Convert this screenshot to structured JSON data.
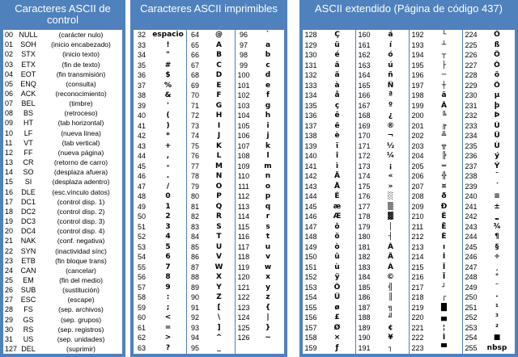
{
  "control": {
    "title": "Caracteres ASCII de control",
    "rows": [
      {
        "code": "00",
        "name": "NULL",
        "desc": "(carácter nulo)"
      },
      {
        "code": "01",
        "name": "SOH",
        "desc": "(inicio encabezado)"
      },
      {
        "code": "02",
        "name": "STX",
        "desc": "(inicio texto)"
      },
      {
        "code": "03",
        "name": "ETX",
        "desc": "(fin de texto)"
      },
      {
        "code": "04",
        "name": "EOT",
        "desc": "(fin transmisión)"
      },
      {
        "code": "05",
        "name": "ENQ",
        "desc": "(consulta)"
      },
      {
        "code": "06",
        "name": "ACK",
        "desc": "(reconocimiento)"
      },
      {
        "code": "07",
        "name": "BEL",
        "desc": "(timbre)"
      },
      {
        "code": "08",
        "name": "BS",
        "desc": "(retroceso)"
      },
      {
        "code": "09",
        "name": "HT",
        "desc": "(tab horizontal)"
      },
      {
        "code": "10",
        "name": "LF",
        "desc": "(nueva línea)"
      },
      {
        "code": "11",
        "name": "VT",
        "desc": "(tab vertical)"
      },
      {
        "code": "12",
        "name": "FF",
        "desc": "(nueva página)"
      },
      {
        "code": "13",
        "name": "CR",
        "desc": "(retorno de carro)"
      },
      {
        "code": "14",
        "name": "SO",
        "desc": "(desplaza afuera)"
      },
      {
        "code": "15",
        "name": "SI",
        "desc": "(desplaza adentro)"
      },
      {
        "code": "16",
        "name": "DLE",
        "desc": "(esc.vínculo datos)"
      },
      {
        "code": "17",
        "name": "DC1",
        "desc": "(control disp. 1)"
      },
      {
        "code": "18",
        "name": "DC2",
        "desc": "(control disp. 2)"
      },
      {
        "code": "19",
        "name": "DC3",
        "desc": "(control disp. 3)"
      },
      {
        "code": "20",
        "name": "DC4",
        "desc": "(control disp. 4)"
      },
      {
        "code": "21",
        "name": "NAK",
        "desc": "(conf. negativa)"
      },
      {
        "code": "22",
        "name": "SYN",
        "desc": "(inactividad sínc)"
      },
      {
        "code": "23",
        "name": "ETB",
        "desc": "(fin bloque trans)"
      },
      {
        "code": "24",
        "name": "CAN",
        "desc": "(cancelar)"
      },
      {
        "code": "25",
        "name": "EM",
        "desc": "(fin del medio)"
      },
      {
        "code": "26",
        "name": "SUB",
        "desc": "(sustitución)"
      },
      {
        "code": "27",
        "name": "ESC",
        "desc": "(escape)"
      },
      {
        "code": "28",
        "name": "FS",
        "desc": "(sep. archivos)"
      },
      {
        "code": "29",
        "name": "GS",
        "desc": "(sep. grupos)"
      },
      {
        "code": "30",
        "name": "RS",
        "desc": "(sep. registros)"
      },
      {
        "code": "31",
        "name": "US",
        "desc": "(sep. unidades)"
      },
      {
        "code": "127",
        "name": "DEL",
        "desc": "(suprimir)"
      }
    ]
  },
  "printable": {
    "title": "Caracteres ASCII imprimibles",
    "columns": [
      [
        [
          "32",
          "espacio"
        ],
        [
          "33",
          "!"
        ],
        [
          "34",
          "\""
        ],
        [
          "35",
          "#"
        ],
        [
          "36",
          "$"
        ],
        [
          "37",
          "%"
        ],
        [
          "38",
          "&"
        ],
        [
          "39",
          "'"
        ],
        [
          "40",
          "("
        ],
        [
          "41",
          ")"
        ],
        [
          "42",
          "*"
        ],
        [
          "43",
          "+"
        ],
        [
          "44",
          ","
        ],
        [
          "45",
          "-"
        ],
        [
          "46",
          "."
        ],
        [
          "47",
          "/"
        ],
        [
          "48",
          "0"
        ],
        [
          "49",
          "1"
        ],
        [
          "50",
          "2"
        ],
        [
          "51",
          "3"
        ],
        [
          "52",
          "4"
        ],
        [
          "53",
          "5"
        ],
        [
          "54",
          "6"
        ],
        [
          "55",
          "7"
        ],
        [
          "56",
          "8"
        ],
        [
          "57",
          "9"
        ],
        [
          "58",
          ":"
        ],
        [
          "59",
          ";"
        ],
        [
          "60",
          "<"
        ],
        [
          "61",
          "="
        ],
        [
          "62",
          ">"
        ],
        [
          "63",
          "?"
        ]
      ],
      [
        [
          "64",
          "@"
        ],
        [
          "65",
          "A"
        ],
        [
          "66",
          "B"
        ],
        [
          "67",
          "C"
        ],
        [
          "68",
          "D"
        ],
        [
          "69",
          "E"
        ],
        [
          "70",
          "F"
        ],
        [
          "71",
          "G"
        ],
        [
          "72",
          "H"
        ],
        [
          "73",
          "I"
        ],
        [
          "74",
          "J"
        ],
        [
          "75",
          "K"
        ],
        [
          "76",
          "L"
        ],
        [
          "77",
          "M"
        ],
        [
          "78",
          "N"
        ],
        [
          "79",
          "O"
        ],
        [
          "80",
          "P"
        ],
        [
          "81",
          "Q"
        ],
        [
          "82",
          "R"
        ],
        [
          "83",
          "S"
        ],
        [
          "84",
          "T"
        ],
        [
          "85",
          "U"
        ],
        [
          "86",
          "V"
        ],
        [
          "87",
          "W"
        ],
        [
          "88",
          "X"
        ],
        [
          "89",
          "Y"
        ],
        [
          "90",
          "Z"
        ],
        [
          "91",
          "["
        ],
        [
          "92",
          "\\"
        ],
        [
          "93",
          "]"
        ],
        [
          "94",
          "^"
        ],
        [
          "95",
          "_"
        ]
      ],
      [
        [
          "96",
          "`"
        ],
        [
          "97",
          "a"
        ],
        [
          "98",
          "b"
        ],
        [
          "99",
          "c"
        ],
        [
          "100",
          "d"
        ],
        [
          "101",
          "e"
        ],
        [
          "102",
          "f"
        ],
        [
          "103",
          "g"
        ],
        [
          "104",
          "h"
        ],
        [
          "105",
          "i"
        ],
        [
          "106",
          "j"
        ],
        [
          "107",
          "k"
        ],
        [
          "108",
          "l"
        ],
        [
          "109",
          "m"
        ],
        [
          "110",
          "n"
        ],
        [
          "111",
          "o"
        ],
        [
          "112",
          "p"
        ],
        [
          "113",
          "q"
        ],
        [
          "114",
          "r"
        ],
        [
          "115",
          "s"
        ],
        [
          "116",
          "t"
        ],
        [
          "117",
          "u"
        ],
        [
          "118",
          "v"
        ],
        [
          "119",
          "w"
        ],
        [
          "120",
          "x"
        ],
        [
          "121",
          "y"
        ],
        [
          "122",
          "z"
        ],
        [
          "123",
          "{"
        ],
        [
          "124",
          "|"
        ],
        [
          "125",
          "}"
        ],
        [
          "126",
          "~"
        ]
      ]
    ]
  },
  "extended": {
    "title": "ASCII extendido (Página de código 437)",
    "columns": [
      [
        [
          "128",
          "Ç"
        ],
        [
          "129",
          "ü"
        ],
        [
          "130",
          "é"
        ],
        [
          "131",
          "â"
        ],
        [
          "132",
          "ä"
        ],
        [
          "133",
          "à"
        ],
        [
          "134",
          "å"
        ],
        [
          "135",
          "ç"
        ],
        [
          "136",
          "ê"
        ],
        [
          "137",
          "ë"
        ],
        [
          "138",
          "è"
        ],
        [
          "139",
          "ï"
        ],
        [
          "140",
          "î"
        ],
        [
          "141",
          "ì"
        ],
        [
          "142",
          "Ä"
        ],
        [
          "143",
          "Å"
        ],
        [
          "144",
          "É"
        ],
        [
          "145",
          "æ"
        ],
        [
          "146",
          "Æ"
        ],
        [
          "147",
          "ô"
        ],
        [
          "148",
          "ö"
        ],
        [
          "149",
          "ò"
        ],
        [
          "150",
          "û"
        ],
        [
          "151",
          "ù"
        ],
        [
          "152",
          "ÿ"
        ],
        [
          "153",
          "Ö"
        ],
        [
          "154",
          "Ü"
        ],
        [
          "155",
          "ø"
        ],
        [
          "156",
          "£"
        ],
        [
          "157",
          "Ø"
        ],
        [
          "158",
          "×"
        ],
        [
          "159",
          "ƒ"
        ]
      ],
      [
        [
          "160",
          "á"
        ],
        [
          "161",
          "í"
        ],
        [
          "162",
          "ó"
        ],
        [
          "163",
          "ú"
        ],
        [
          "164",
          "ñ"
        ],
        [
          "165",
          "Ñ"
        ],
        [
          "166",
          "ª"
        ],
        [
          "167",
          "º"
        ],
        [
          "168",
          "¿"
        ],
        [
          "169",
          "®"
        ],
        [
          "170",
          "¬"
        ],
        [
          "171",
          "½"
        ],
        [
          "172",
          "¼"
        ],
        [
          "173",
          "¡"
        ],
        [
          "174",
          "«"
        ],
        [
          "175",
          "»"
        ],
        [
          "176",
          "░"
        ],
        [
          "177",
          "▒"
        ],
        [
          "178",
          "▓"
        ],
        [
          "179",
          "│"
        ],
        [
          "180",
          "┤"
        ],
        [
          "181",
          "Á"
        ],
        [
          "182",
          "Â"
        ],
        [
          "183",
          "À"
        ],
        [
          "184",
          "©"
        ],
        [
          "185",
          "╣"
        ],
        [
          "186",
          "║"
        ],
        [
          "187",
          "╗"
        ],
        [
          "188",
          "╝"
        ],
        [
          "189",
          "¢"
        ],
        [
          "190",
          "¥"
        ],
        [
          "191",
          "┐"
        ]
      ],
      [
        [
          "192",
          "└"
        ],
        [
          "193",
          "┴"
        ],
        [
          "194",
          "┬"
        ],
        [
          "195",
          "├"
        ],
        [
          "196",
          "─"
        ],
        [
          "197",
          "┼"
        ],
        [
          "198",
          "ã"
        ],
        [
          "199",
          "Ã"
        ],
        [
          "200",
          "╚"
        ],
        [
          "201",
          "╔"
        ],
        [
          "202",
          "╩"
        ],
        [
          "203",
          "╦"
        ],
        [
          "204",
          "╠"
        ],
        [
          "205",
          "═"
        ],
        [
          "206",
          "╬"
        ],
        [
          "207",
          "¤"
        ],
        [
          "208",
          "ð"
        ],
        [
          "209",
          "Ð"
        ],
        [
          "210",
          "Ê"
        ],
        [
          "211",
          "Ë"
        ],
        [
          "212",
          "È"
        ],
        [
          "213",
          "ı"
        ],
        [
          "214",
          "Í"
        ],
        [
          "215",
          "Î"
        ],
        [
          "216",
          "Ï"
        ],
        [
          "217",
          "┘"
        ],
        [
          "218",
          "┌"
        ],
        [
          "219",
          "█"
        ],
        [
          "220",
          "▄"
        ],
        [
          "221",
          "¦"
        ],
        [
          "222",
          "Ì"
        ],
        [
          "223",
          "▀"
        ]
      ],
      [
        [
          "224",
          "Ó"
        ],
        [
          "225",
          "ß"
        ],
        [
          "226",
          "Ô"
        ],
        [
          "227",
          "Ò"
        ],
        [
          "228",
          "õ"
        ],
        [
          "229",
          "Õ"
        ],
        [
          "230",
          "µ"
        ],
        [
          "231",
          "þ"
        ],
        [
          "232",
          "Þ"
        ],
        [
          "233",
          "Ú"
        ],
        [
          "234",
          "Û"
        ],
        [
          "235",
          "Ù"
        ],
        [
          "236",
          "ý"
        ],
        [
          "237",
          "Ý"
        ],
        [
          "238",
          "¯"
        ],
        [
          "239",
          "´"
        ],
        [
          "240",
          "≡"
        ],
        [
          "241",
          "±"
        ],
        [
          "242",
          "‗"
        ],
        [
          "243",
          "¾"
        ],
        [
          "244",
          "¶"
        ],
        [
          "245",
          "§"
        ],
        [
          "246",
          "÷"
        ],
        [
          "247",
          "¸"
        ],
        [
          "248",
          "°"
        ],
        [
          "249",
          "¨"
        ],
        [
          "250",
          "·"
        ],
        [
          "251",
          "¹"
        ],
        [
          "252",
          "³"
        ],
        [
          "253",
          "²"
        ],
        [
          "254",
          "■"
        ],
        [
          "255",
          "nbsp"
        ]
      ]
    ]
  }
}
